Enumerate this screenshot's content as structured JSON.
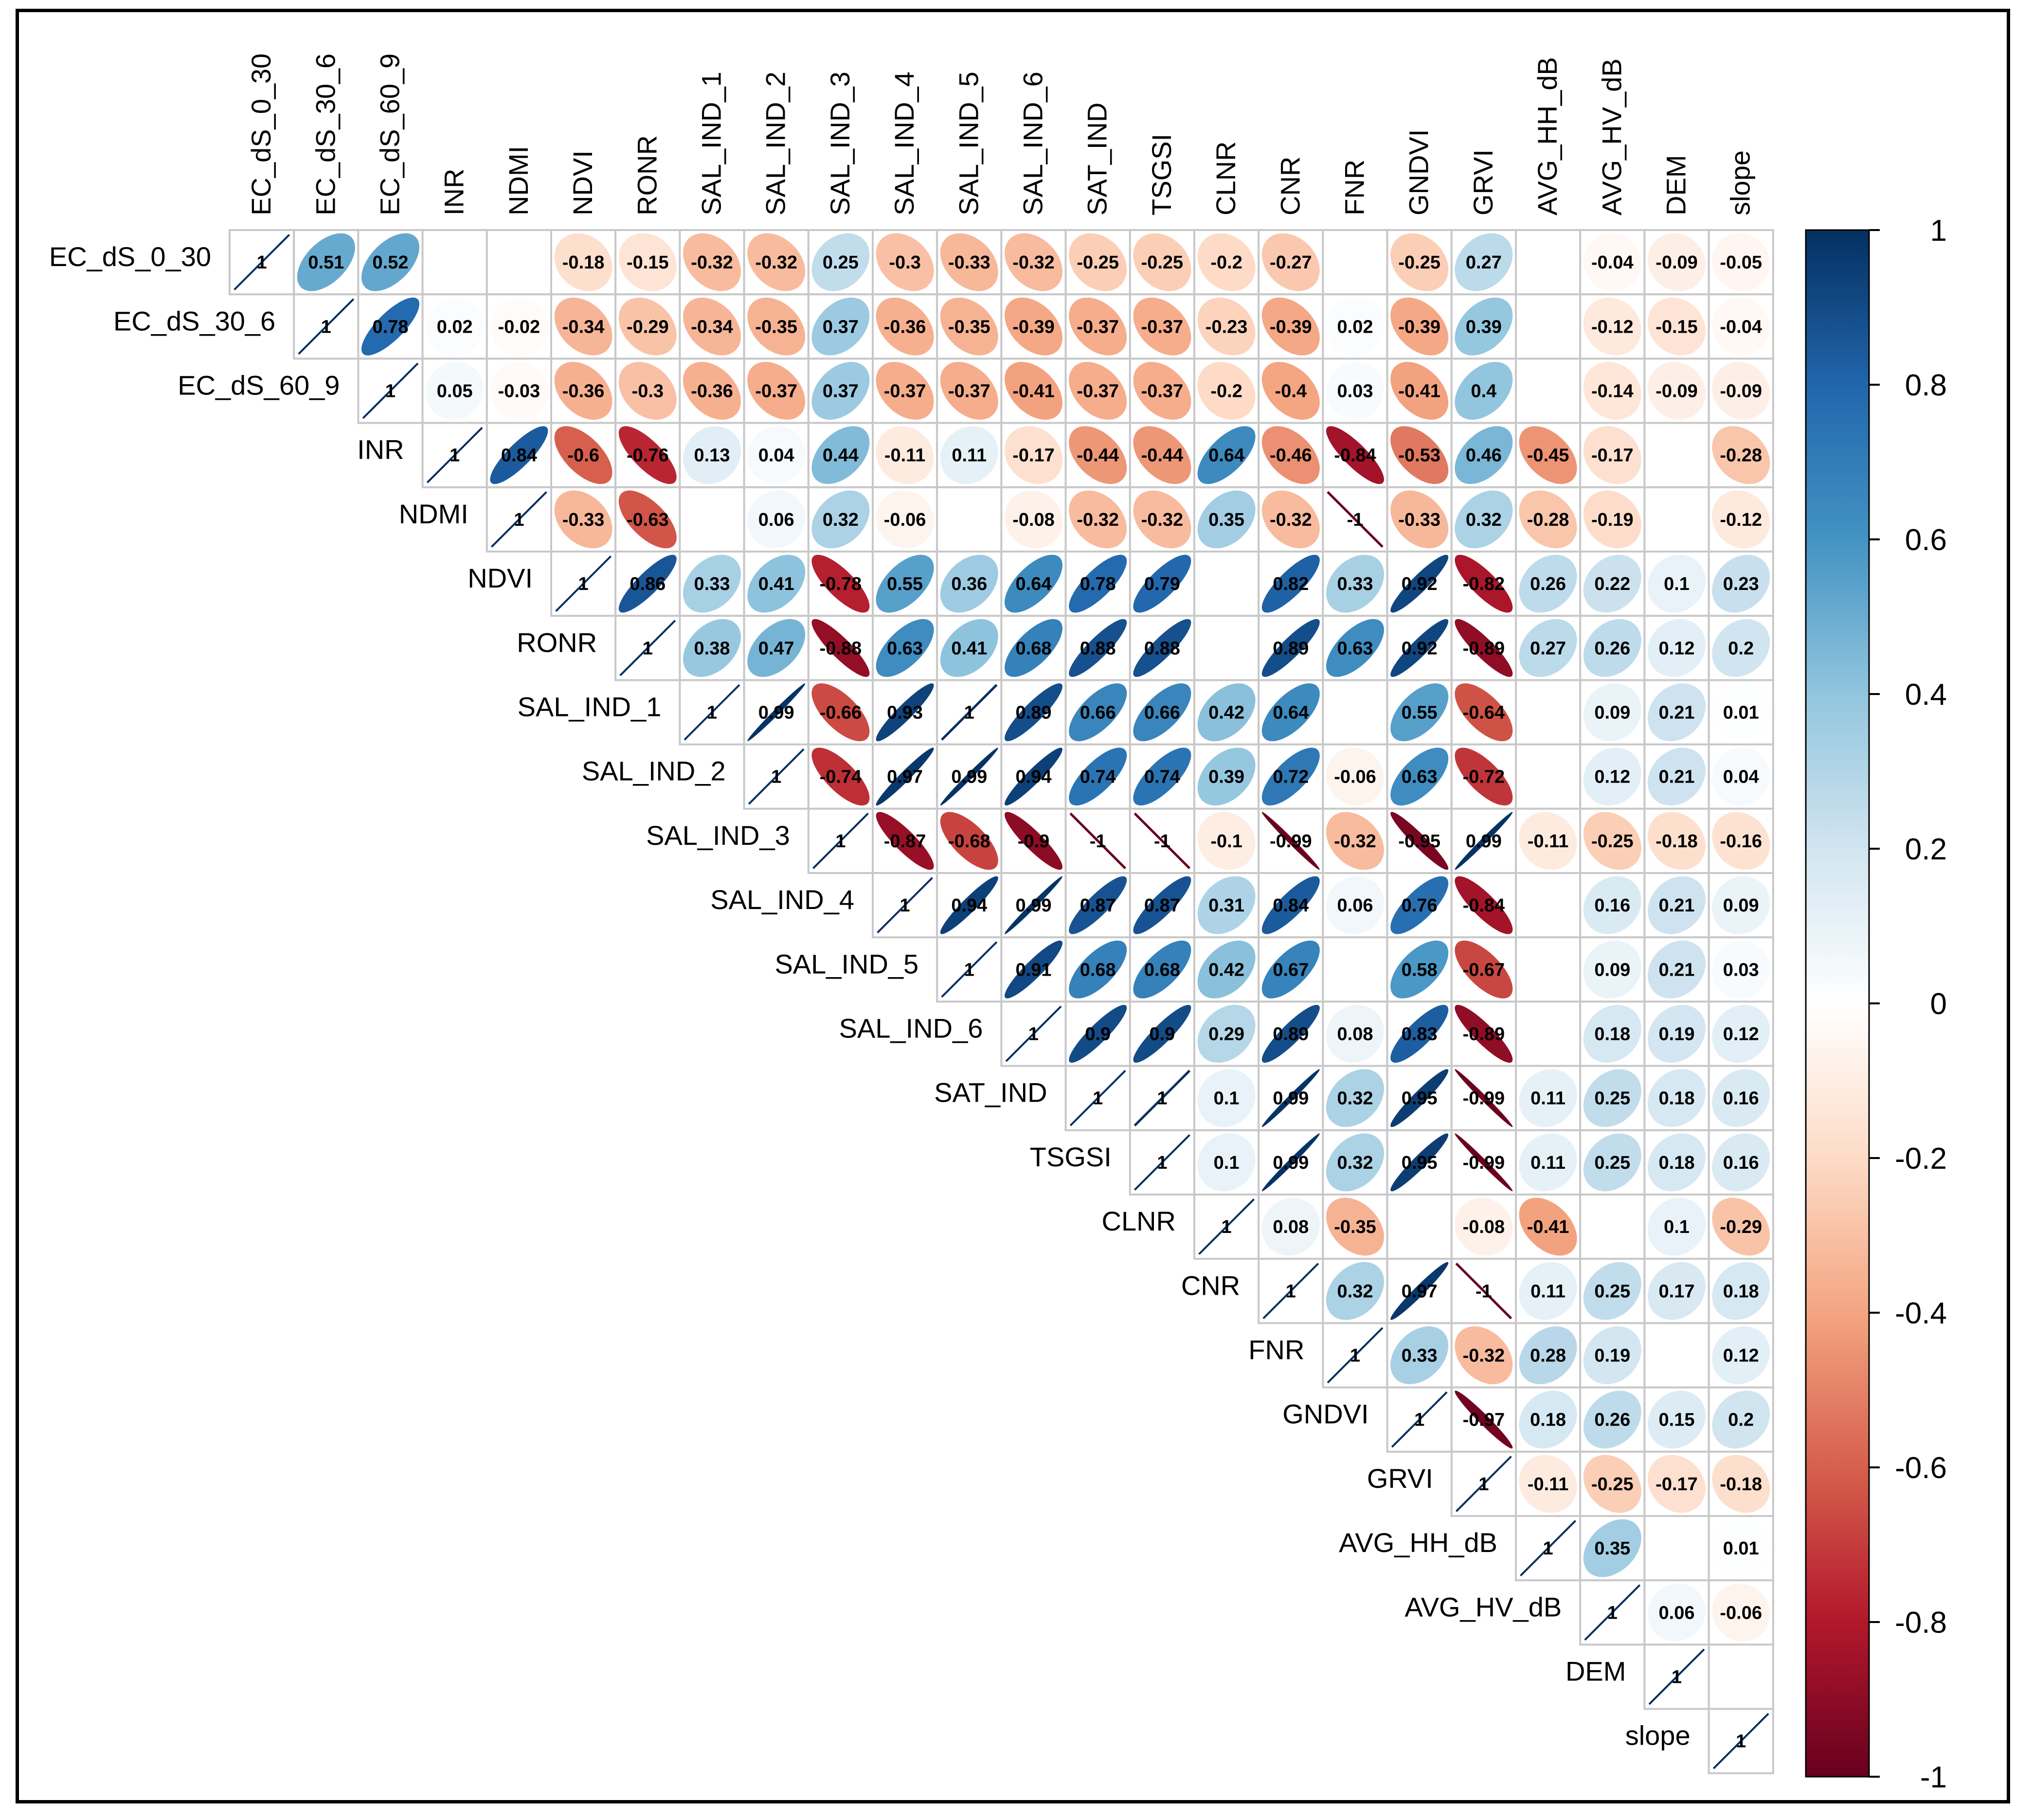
{
  "chart_data": {
    "type": "heatmap",
    "style": "correlation-ellipse-upper-triangle",
    "title": "",
    "variables": [
      "EC_dS_0_30",
      "EC_dS_30_6",
      "EC_dS_60_9",
      "INR",
      "NDMI",
      "NDVI",
      "RONR",
      "SAL_IND_1",
      "SAL_IND_2",
      "SAL_IND_3",
      "SAL_IND_4",
      "SAL_IND_5",
      "SAL_IND_6",
      "SAT_IND",
      "TSGSI",
      "CLNR",
      "CNR",
      "FNR",
      "GNDVI",
      "GRVI",
      "AVG_HH_dB",
      "AVG_HV_dB",
      "DEM",
      "slope"
    ],
    "matrix_upper": [
      [
        1,
        0.51,
        0.52,
        null,
        null,
        -0.18,
        -0.15,
        -0.32,
        -0.32,
        0.25,
        -0.3,
        -0.33,
        -0.32,
        -0.25,
        -0.25,
        -0.2,
        -0.27,
        null,
        -0.25,
        0.27,
        null,
        -0.04,
        -0.09,
        -0.05
      ],
      [
        1,
        0.78,
        0.02,
        -0.02,
        -0.34,
        -0.29,
        -0.34,
        -0.35,
        0.37,
        -0.36,
        -0.35,
        -0.39,
        -0.37,
        -0.37,
        -0.23,
        -0.39,
        0.02,
        -0.39,
        0.39,
        null,
        -0.12,
        -0.15,
        -0.04
      ],
      [
        1,
        0.05,
        -0.03,
        -0.36,
        -0.3,
        -0.36,
        -0.37,
        0.37,
        -0.37,
        -0.37,
        -0.41,
        -0.37,
        -0.37,
        -0.2,
        -0.4,
        0.03,
        -0.41,
        0.4,
        null,
        -0.14,
        -0.09,
        -0.09
      ],
      [
        1,
        0.84,
        -0.6,
        -0.76,
        0.13,
        0.04,
        0.44,
        -0.11,
        0.11,
        -0.17,
        -0.44,
        -0.44,
        0.64,
        -0.46,
        -0.84,
        -0.53,
        0.46,
        -0.45,
        -0.17,
        null,
        -0.28
      ],
      [
        1,
        -0.33,
        -0.63,
        null,
        0.06,
        0.32,
        -0.06,
        null,
        -0.08,
        -0.32,
        -0.32,
        0.35,
        -0.32,
        -1,
        -0.33,
        0.32,
        -0.28,
        -0.19,
        null,
        -0.12
      ],
      [
        1,
        0.86,
        0.33,
        0.41,
        -0.78,
        0.55,
        0.36,
        0.64,
        0.78,
        0.79,
        null,
        0.82,
        0.33,
        0.92,
        -0.82,
        0.26,
        0.22,
        0.1,
        0.23
      ],
      [
        1,
        0.38,
        0.47,
        -0.88,
        0.63,
        0.41,
        0.68,
        0.88,
        0.88,
        null,
        0.89,
        0.63,
        0.92,
        -0.89,
        0.27,
        0.26,
        0.12,
        0.2
      ],
      [
        1,
        0.99,
        -0.66,
        0.93,
        1,
        0.89,
        0.66,
        0.66,
        0.42,
        0.64,
        null,
        0.55,
        -0.64,
        null,
        0.09,
        0.21,
        0.01
      ],
      [
        1,
        -0.74,
        0.97,
        0.99,
        0.94,
        0.74,
        0.74,
        0.39,
        0.72,
        -0.06,
        0.63,
        -0.72,
        null,
        0.12,
        0.21,
        0.04
      ],
      [
        1,
        -0.87,
        -0.68,
        -0.9,
        -1,
        -1,
        -0.1,
        -0.99,
        -0.32,
        -0.95,
        0.99,
        -0.11,
        -0.25,
        -0.18,
        -0.16
      ],
      [
        1,
        0.94,
        0.99,
        0.87,
        0.87,
        0.31,
        0.84,
        0.06,
        0.76,
        -0.84,
        null,
        0.16,
        0.21,
        0.09
      ],
      [
        1,
        0.91,
        0.68,
        0.68,
        0.42,
        0.67,
        null,
        0.58,
        -0.67,
        null,
        0.09,
        0.21,
        0.03
      ],
      [
        1,
        0.9,
        0.9,
        0.29,
        0.89,
        0.08,
        0.83,
        -0.89,
        null,
        0.18,
        0.19,
        0.12
      ],
      [
        1,
        1,
        0.1,
        0.99,
        0.32,
        0.95,
        -0.99,
        0.11,
        0.25,
        0.18,
        0.16
      ],
      [
        1,
        0.1,
        0.99,
        0.32,
        0.95,
        -0.99,
        0.11,
        0.25,
        0.18,
        0.16
      ],
      [
        1,
        0.08,
        -0.35,
        null,
        -0.08,
        -0.41,
        null,
        0.1,
        -0.29
      ],
      [
        1,
        0.32,
        0.97,
        -1,
        0.11,
        0.25,
        0.17,
        0.18
      ],
      [
        1,
        0.33,
        -0.32,
        0.28,
        0.19,
        null,
        0.12
      ],
      [
        1,
        -0.97,
        0.18,
        0.26,
        0.15,
        0.2
      ],
      [
        1,
        -0.11,
        -0.25,
        -0.17,
        -0.18
      ],
      [
        1,
        0.35,
        null,
        0.01
      ],
      [
        1,
        0.06,
        -0.06
      ],
      [
        1,
        null
      ],
      [
        1
      ]
    ],
    "colorbar": {
      "range": [
        -1,
        1
      ],
      "tick_labels": [
        "1",
        "0.8",
        "0.6",
        "0.4",
        "0.2",
        "0",
        "-0.2",
        "-0.4",
        "-0.6",
        "-0.8",
        "-1"
      ],
      "color_stops": [
        "#67001F",
        "#B2182B",
        "#D6604D",
        "#F4A582",
        "#FDDBC7",
        "#FFFFFF",
        "#D1E5F0",
        "#92C5DE",
        "#4393C3",
        "#2166AC",
        "#053061"
      ]
    },
    "grid_color": "#C8C8C8"
  }
}
